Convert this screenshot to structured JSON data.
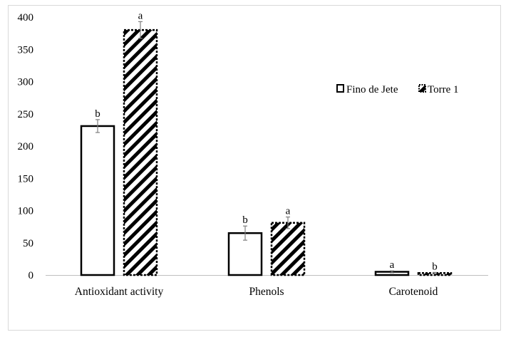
{
  "chart_data": {
    "type": "bar",
    "title": "",
    "xlabel": "",
    "ylabel": "",
    "ylim": [
      0,
      400
    ],
    "yticks": [
      0,
      50,
      100,
      150,
      200,
      250,
      300,
      350,
      400
    ],
    "categories": [
      "Antioxidant activity",
      "Phenols",
      "Carotenoid"
    ],
    "series": [
      {
        "name": "Fino de Jete",
        "pattern": "hollow",
        "values": [
          231,
          65,
          5
        ],
        "errors": [
          10,
          11,
          1.5
        ],
        "significance": [
          "b",
          "b",
          "a"
        ]
      },
      {
        "name": "Torre 1",
        "pattern": "diagonal-hatch",
        "values": [
          380,
          81,
          3
        ],
        "errors": [
          13,
          9,
          1
        ],
        "significance": [
          "a",
          "a",
          "b"
        ]
      }
    ],
    "legend_position": "right",
    "grid": false
  },
  "colors": {
    "stroke": "#000000",
    "error_bar": "#7f7f7f",
    "frame": "#d9d9d9"
  }
}
